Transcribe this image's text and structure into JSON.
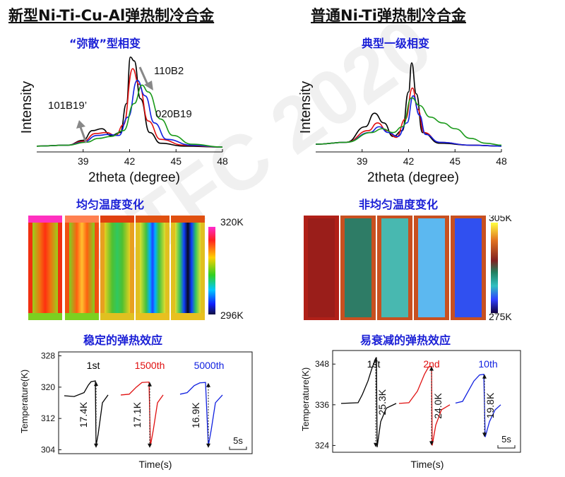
{
  "left": {
    "title": "新型Ni-Ti-Cu-Al弹热制冷合金",
    "xrd_subtitle": "“弥散”型相变",
    "thermal_subtitle": "均匀温度变化",
    "ec_subtitle": "稳定的弹热效应",
    "colorbar": {
      "max_label": "320K",
      "min_label": "296K"
    }
  },
  "right": {
    "title": "普通Ni-Ti弹热制冷合金",
    "xrd_subtitle": "典型一级相变",
    "thermal_subtitle": "非均匀温度变化",
    "ec_subtitle": "易衰减的弹热效应",
    "colorbar": {
      "max_label": "305K",
      "min_label": "275K"
    }
  },
  "colors": {
    "accent_blue": "#1a1fd6",
    "red": "#e01010",
    "blue": "#1020e0",
    "green": "#1a9a1a",
    "black": "#000000"
  },
  "chart_data": [
    {
      "type": "line",
      "id": "left-xrd",
      "xlabel": "2theta (degree)",
      "ylabel": "Intensity",
      "xlim": [
        36,
        48
      ],
      "xticks": [
        39,
        42,
        45,
        48
      ],
      "annotations": [
        "110B2",
        "101B19’",
        "020B19"
      ],
      "series": [
        {
          "color": "#000000",
          "points": [
            [
              36,
              0.06
            ],
            [
              38,
              0.07
            ],
            [
              39,
              0.12
            ],
            [
              39.6,
              0.22
            ],
            [
              40.2,
              0.24
            ],
            [
              40.8,
              0.17
            ],
            [
              41.4,
              0.2
            ],
            [
              41.8,
              0.5
            ],
            [
              42.05,
              0.98
            ],
            [
              42.3,
              0.94
            ],
            [
              42.7,
              0.55
            ],
            [
              43.3,
              0.2
            ],
            [
              44,
              0.09
            ],
            [
              45.5,
              0.06
            ],
            [
              48,
              0.05
            ]
          ]
        },
        {
          "color": "#e01010",
          "points": [
            [
              36,
              0.06
            ],
            [
              38,
              0.07
            ],
            [
              39,
              0.11
            ],
            [
              39.8,
              0.19
            ],
            [
              40.5,
              0.2
            ],
            [
              41.1,
              0.17
            ],
            [
              41.6,
              0.28
            ],
            [
              42.2,
              0.86
            ],
            [
              42.6,
              0.7
            ],
            [
              43.2,
              0.32
            ],
            [
              44,
              0.13
            ],
            [
              45.5,
              0.07
            ],
            [
              48,
              0.05
            ]
          ]
        },
        {
          "color": "#1020e0",
          "points": [
            [
              36,
              0.06
            ],
            [
              38,
              0.07
            ],
            [
              39,
              0.1
            ],
            [
              39.9,
              0.17
            ],
            [
              40.6,
              0.18
            ],
            [
              41.3,
              0.17
            ],
            [
              41.9,
              0.36
            ],
            [
              42.5,
              0.74
            ],
            [
              43,
              0.58
            ],
            [
              43.6,
              0.3
            ],
            [
              44.4,
              0.13
            ],
            [
              46,
              0.07
            ],
            [
              48,
              0.05
            ]
          ]
        },
        {
          "color": "#1a9a1a",
          "points": [
            [
              36,
              0.06
            ],
            [
              38,
              0.07
            ],
            [
              39.2,
              0.1
            ],
            [
              40,
              0.14
            ],
            [
              40.8,
              0.16
            ],
            [
              41.6,
              0.22
            ],
            [
              42.3,
              0.5
            ],
            [
              42.8,
              0.69
            ],
            [
              43.2,
              0.62
            ],
            [
              44,
              0.34
            ],
            [
              44.8,
              0.17
            ],
            [
              46,
              0.08
            ],
            [
              48,
              0.05
            ]
          ]
        }
      ]
    },
    {
      "type": "line",
      "id": "right-xrd",
      "xlabel": "2theta (degree)",
      "ylabel": "Intensity",
      "xlim": [
        36,
        48
      ],
      "xticks": [
        39,
        42,
        45,
        48
      ],
      "series": [
        {
          "color": "#000000",
          "points": [
            [
              36,
              0.08
            ],
            [
              38,
              0.1
            ],
            [
              39.2,
              0.26
            ],
            [
              39.8,
              0.4
            ],
            [
              40.4,
              0.3
            ],
            [
              41,
              0.16
            ],
            [
              41.6,
              0.22
            ],
            [
              42,
              0.62
            ],
            [
              42.2,
              0.92
            ],
            [
              42.5,
              0.6
            ],
            [
              42.9,
              0.2
            ],
            [
              44,
              0.09
            ],
            [
              46,
              0.07
            ],
            [
              48,
              0.06
            ]
          ]
        },
        {
          "color": "#e01010",
          "points": [
            [
              36,
              0.08
            ],
            [
              38,
              0.1
            ],
            [
              39.4,
              0.22
            ],
            [
              40,
              0.3
            ],
            [
              40.6,
              0.22
            ],
            [
              41.2,
              0.15
            ],
            [
              41.8,
              0.34
            ],
            [
              42.25,
              0.66
            ],
            [
              42.6,
              0.44
            ],
            [
              43,
              0.2
            ],
            [
              44,
              0.1
            ],
            [
              46,
              0.07
            ],
            [
              48,
              0.06
            ]
          ]
        },
        {
          "color": "#1020e0",
          "points": [
            [
              36,
              0.08
            ],
            [
              38,
              0.1
            ],
            [
              39.5,
              0.2
            ],
            [
              40.1,
              0.26
            ],
            [
              40.7,
              0.2
            ],
            [
              41.3,
              0.16
            ],
            [
              41.9,
              0.3
            ],
            [
              42.3,
              0.58
            ],
            [
              42.7,
              0.38
            ],
            [
              43.1,
              0.18
            ],
            [
              44,
              0.1
            ],
            [
              46,
              0.07
            ],
            [
              48,
              0.06
            ]
          ]
        },
        {
          "color": "#1a9a1a",
          "points": [
            [
              36,
              0.08
            ],
            [
              38,
              0.1
            ],
            [
              39.6,
              0.2
            ],
            [
              40.3,
              0.24
            ],
            [
              41,
              0.2
            ],
            [
              41.6,
              0.26
            ],
            [
              42.2,
              0.56
            ],
            [
              42.7,
              0.48
            ],
            [
              43.4,
              0.36
            ],
            [
              44.2,
              0.3
            ],
            [
              45,
              0.24
            ],
            [
              46,
              0.14
            ],
            [
              47,
              0.09
            ],
            [
              48,
              0.07
            ]
          ]
        }
      ]
    },
    {
      "type": "line",
      "id": "left-ec",
      "xlabel": "Time(s)",
      "ylabel": "Temperature(K)",
      "ylim": [
        303,
        329
      ],
      "yticks": [
        304,
        312,
        320,
        328
      ],
      "scale_bar": "5s",
      "cycles": [
        {
          "label": "1st",
          "color": "#000000",
          "delta": "17.4K"
        },
        {
          "label": "1500th",
          "color": "#e01010",
          "delta": "17.1K"
        },
        {
          "label": "5000th",
          "color": "#1020e0",
          "delta": "16.9K"
        }
      ]
    },
    {
      "type": "line",
      "id": "right-ec",
      "xlabel": "Time(s)",
      "ylabel": "Temperature(K)",
      "ylim": [
        322,
        352
      ],
      "yticks": [
        324,
        336,
        348
      ],
      "scale_bar": "5s",
      "cycles": [
        {
          "label": "1st",
          "color": "#000000",
          "delta": "25.3K"
        },
        {
          "label": "2nd",
          "color": "#e01010",
          "delta": "24.0K"
        },
        {
          "label": "10th",
          "color": "#1020e0",
          "delta": "19.8K"
        }
      ]
    }
  ]
}
